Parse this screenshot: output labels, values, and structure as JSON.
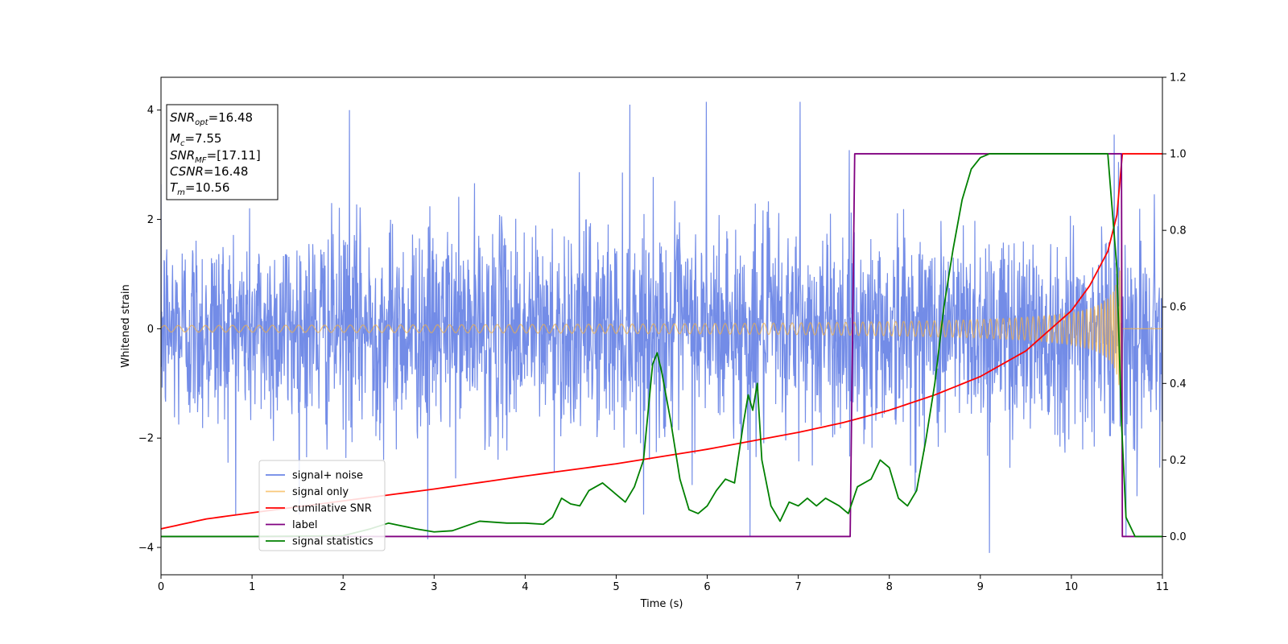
{
  "chart_data": {
    "type": "line",
    "xlabel": "Time (s)",
    "ylabel_left": "Whitened strain",
    "ylabel_right": "",
    "xlim": [
      0,
      11
    ],
    "ylim_left": [
      -4.5,
      4.6
    ],
    "ylim_right": [
      -0.1,
      1.2
    ],
    "x_ticks": [
      0,
      1,
      2,
      3,
      4,
      5,
      6,
      7,
      8,
      9,
      10,
      11
    ],
    "y_ticks_left": [
      -4,
      -2,
      0,
      2,
      4
    ],
    "y_ticks_right": [
      0.0,
      0.2,
      0.4,
      0.6,
      0.8,
      1.0,
      1.2
    ],
    "x_tick_labels": [
      "0",
      "1",
      "2",
      "3",
      "4",
      "5",
      "6",
      "7",
      "8",
      "9",
      "10",
      "11"
    ],
    "y_tick_labels_left": [
      "−4",
      "−2",
      "0",
      "2",
      "4"
    ],
    "y_tick_labels_right": [
      "0.0",
      "0.2",
      "0.4",
      "0.6",
      "0.8",
      "1.0",
      "1.2"
    ],
    "grid": false,
    "legend_position": "lower-left",
    "info_box": {
      "snr_opt": {
        "base": "SNR",
        "sub": "opt",
        "value": "=16.48"
      },
      "mc": {
        "base": "M",
        "sub": "c",
        "value": "=7.55"
      },
      "snr_mf": {
        "base": "SNR",
        "sub": "MF",
        "value": "=[17.11]"
      },
      "csnr": {
        "base": "CSNR",
        "value": "=16.48"
      },
      "tm": {
        "base": "T",
        "sub": "m",
        "value": "=10.56"
      }
    },
    "series": [
      {
        "name": "signal+ noise",
        "axis": "left",
        "color": "#6b86e6",
        "style": "noisy",
        "noise_amplitude": 2.0,
        "peak_samples": [
          [
            2.07,
            4.0
          ],
          [
            5.15,
            4.1
          ],
          [
            5.99,
            4.15
          ],
          [
            6.47,
            4.05
          ],
          [
            7.02,
            4.15
          ],
          [
            10.47,
            3.55
          ],
          [
            9.1,
            -4.1
          ],
          [
            2.93,
            -3.85
          ],
          [
            6.47,
            -3.8
          ],
          [
            10.6,
            -3.8
          ]
        ]
      },
      {
        "name": "signal only",
        "axis": "left",
        "color": "#f5b041",
        "style": "chirp",
        "merger_time": 10.56,
        "start_amplitude": 0.06,
        "peak_amplitude": 2.0
      },
      {
        "name": "cumilative SNR",
        "axis": "right",
        "color": "#ff0000",
        "x": [
          0,
          0.5,
          1,
          2,
          3,
          4,
          5,
          6,
          7,
          7.5,
          8,
          8.5,
          9,
          9.5,
          10,
          10.2,
          10.4,
          10.5,
          10.56,
          11
        ],
        "y": [
          0.02,
          0.046,
          0.062,
          0.093,
          0.124,
          0.158,
          0.19,
          0.228,
          0.272,
          0.298,
          0.33,
          0.37,
          0.418,
          0.485,
          0.59,
          0.655,
          0.745,
          0.84,
          1.0,
          1.0
        ]
      },
      {
        "name": "label",
        "axis": "right",
        "color": "#800080",
        "x": [
          0,
          7.57,
          7.62,
          10.55,
          10.56,
          11
        ],
        "y": [
          0,
          0,
          1,
          1,
          0,
          0
        ]
      },
      {
        "name": "signal statistics",
        "axis": "right",
        "color": "#008000",
        "x": [
          0,
          0.5,
          1,
          2,
          2.3,
          2.5,
          2.6,
          2.8,
          3.0,
          3.2,
          3.5,
          3.8,
          4.0,
          4.2,
          4.3,
          4.4,
          4.5,
          4.6,
          4.7,
          4.85,
          5.0,
          5.1,
          5.2,
          5.3,
          5.4,
          5.45,
          5.5,
          5.6,
          5.7,
          5.8,
          5.9,
          6.0,
          6.1,
          6.2,
          6.3,
          6.4,
          6.45,
          6.5,
          6.55,
          6.6,
          6.7,
          6.8,
          6.9,
          7.0,
          7.1,
          7.2,
          7.3,
          7.45,
          7.55,
          7.65,
          7.8,
          7.9,
          8.0,
          8.1,
          8.2,
          8.3,
          8.4,
          8.5,
          8.6,
          8.7,
          8.8,
          8.9,
          9.0,
          9.1,
          9.3,
          9.6,
          9.9,
          10.2,
          10.4,
          10.5,
          10.55,
          10.6,
          10.7,
          11
        ],
        "y": [
          0,
          0,
          0,
          0.002,
          0.02,
          0.035,
          0.03,
          0.02,
          0.012,
          0.015,
          0.04,
          0.035,
          0.035,
          0.032,
          0.05,
          0.1,
          0.085,
          0.08,
          0.12,
          0.14,
          0.11,
          0.09,
          0.13,
          0.2,
          0.45,
          0.48,
          0.43,
          0.3,
          0.15,
          0.07,
          0.06,
          0.08,
          0.12,
          0.15,
          0.14,
          0.3,
          0.37,
          0.33,
          0.4,
          0.2,
          0.08,
          0.04,
          0.09,
          0.08,
          0.1,
          0.08,
          0.1,
          0.08,
          0.06,
          0.13,
          0.15,
          0.2,
          0.18,
          0.1,
          0.08,
          0.12,
          0.25,
          0.4,
          0.6,
          0.75,
          0.88,
          0.96,
          0.99,
          1.0,
          1.0,
          1.0,
          1.0,
          1.0,
          1.0,
          0.7,
          0.3,
          0.05,
          0.0,
          0.0
        ]
      }
    ]
  }
}
